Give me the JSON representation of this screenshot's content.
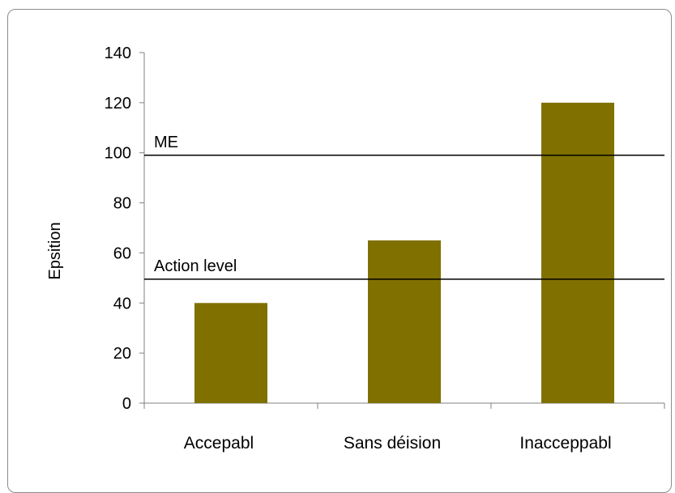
{
  "chart_data": {
    "type": "bar",
    "categories": [
      "Acceptable",
      "Sans décision",
      "Inacceptable"
    ],
    "category_labels_rendered": [
      "Accepabl",
      "Sans déision",
      "Inacceppabl"
    ],
    "values": [
      40,
      65,
      120
    ],
    "ylabel": "Exposition",
    "ylabel_rendered": "Epsition",
    "ylim": [
      0,
      140
    ],
    "yticks": [
      "0",
      "20",
      "40",
      "60",
      "80",
      "100",
      "120",
      "140"
    ],
    "reference_lines": [
      {
        "label": "VME",
        "label_rendered": "ME",
        "value": 99
      },
      {
        "label": "Action level",
        "label_rendered": "Action level",
        "value": 49.5
      }
    ],
    "grid": false,
    "legend": "none",
    "colors": {
      "bar": "#807000",
      "axis": "#808080",
      "reference_line": "#000000"
    }
  }
}
